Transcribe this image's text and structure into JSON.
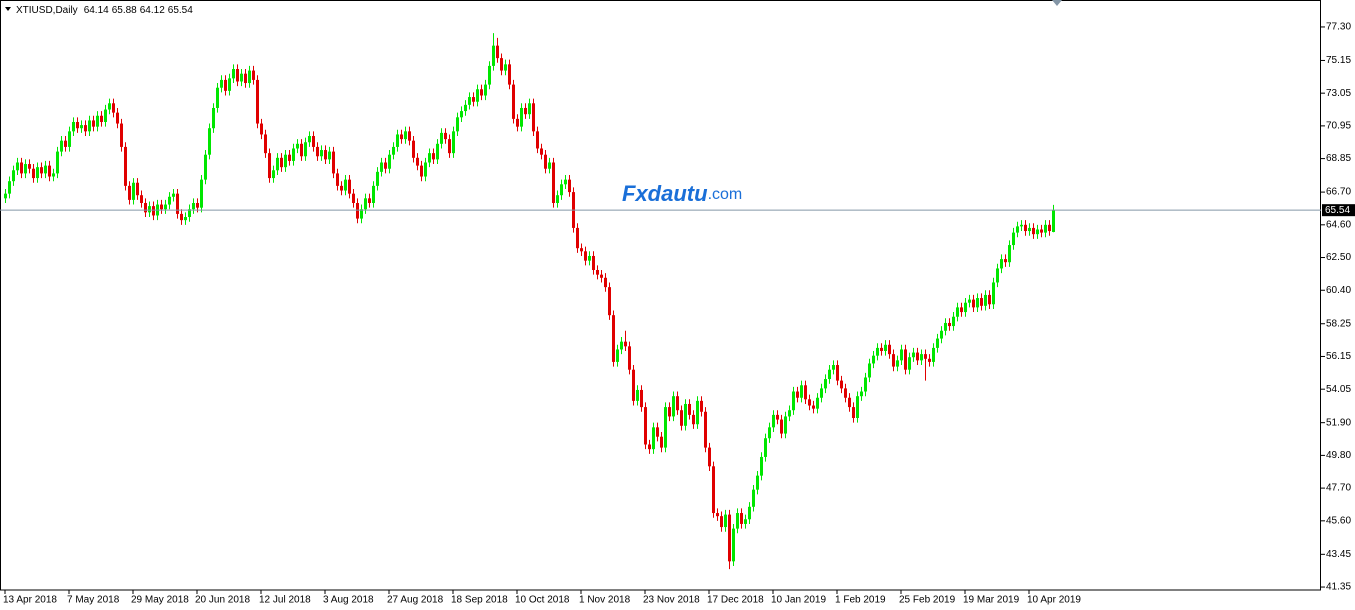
{
  "chart_data": {
    "type": "candlestick",
    "title": "XTIUSD,Daily",
    "watermark": "Fxdautu",
    "watermark_domain": ".com",
    "up_color": "#00e600",
    "down_color": "#e00000",
    "price_line_color": "#8496a6",
    "grid": false,
    "ylim": [
      41.16,
      79.03
    ],
    "yticks": [
      41.35,
      43.45,
      {
        "value": 45.6,
        "label": "45.60"
      },
      {
        "value": 47.7,
        "label": "47.70"
      },
      {
        "value": 49.8,
        "label": "49.80"
      },
      {
        "value": 51.9,
        "label": "51.90"
      },
      54.05,
      56.15,
      58.25,
      {
        "value": 60.4,
        "label": "60.40"
      },
      {
        "value": 62.5,
        "label": "62.50"
      },
      {
        "value": 64.6,
        "label": "64.60"
      },
      {
        "value": 66.7,
        "label": "66.70"
      },
      68.85,
      70.95,
      73.05,
      75.15,
      {
        "value": 77.3,
        "label": "77.30"
      }
    ],
    "categories": [
      "13 Apr 2018",
      null,
      null,
      null,
      null,
      null,
      null,
      null,
      null,
      null,
      null,
      null,
      null,
      null,
      null,
      null,
      "7 May 2018",
      null,
      null,
      null,
      null,
      null,
      null,
      null,
      null,
      null,
      null,
      null,
      null,
      null,
      null,
      null,
      "29 May 2018",
      null,
      null,
      null,
      null,
      null,
      null,
      null,
      null,
      null,
      null,
      null,
      null,
      null,
      null,
      null,
      "20 Jun 2018",
      null,
      null,
      null,
      null,
      null,
      null,
      null,
      null,
      null,
      null,
      null,
      null,
      null,
      null,
      null,
      "12 Jul 2018",
      null,
      null,
      null,
      null,
      null,
      null,
      null,
      null,
      null,
      null,
      null,
      null,
      null,
      null,
      null,
      "3 Aug 2018",
      null,
      null,
      null,
      null,
      null,
      null,
      null,
      null,
      null,
      null,
      null,
      null,
      null,
      null,
      null,
      "27 Aug 2018",
      null,
      null,
      null,
      null,
      null,
      null,
      null,
      null,
      null,
      null,
      null,
      null,
      null,
      null,
      null,
      "18 Sep 2018",
      null,
      null,
      null,
      null,
      null,
      null,
      null,
      null,
      null,
      null,
      null,
      null,
      null,
      null,
      null,
      "10 Oct 2018",
      null,
      null,
      null,
      null,
      null,
      null,
      null,
      null,
      null,
      null,
      null,
      null,
      null,
      null,
      null,
      "1 Nov 2018",
      null,
      null,
      null,
      null,
      null,
      null,
      null,
      null,
      null,
      null,
      null,
      null,
      null,
      null,
      null,
      "23 Nov 2018",
      null,
      null,
      null,
      null,
      null,
      null,
      null,
      null,
      null,
      null,
      null,
      null,
      null,
      null,
      null,
      "17 Dec 2018",
      null,
      null,
      null,
      null,
      null,
      null,
      null,
      null,
      null,
      null,
      null,
      null,
      null,
      null,
      null,
      "10 Jan 2019",
      null,
      null,
      null,
      null,
      null,
      null,
      null,
      null,
      null,
      null,
      null,
      null,
      null,
      null,
      null,
      "1 Feb 2019",
      null,
      null,
      null,
      null,
      null,
      null,
      null,
      null,
      null,
      null,
      null,
      null,
      null,
      null,
      null,
      "25 Feb 2019",
      null,
      null,
      null,
      null,
      null,
      null,
      null,
      null,
      null,
      null,
      null,
      null,
      null,
      null,
      null,
      "19 Mar 2019",
      null,
      null,
      null,
      null,
      null,
      null,
      null,
      null,
      null,
      null,
      null,
      null,
      null,
      null,
      null,
      "10 Apr 2019",
      null,
      null,
      null,
      null,
      null,
      null
    ],
    "open": [
      66.3,
      66.6,
      67.4,
      68.1,
      68.6,
      67.9,
      68.5,
      68.2,
      67.6,
      68.3,
      67.9,
      68.4,
      67.7,
      67.9,
      69.3,
      70.0,
      69.6,
      70.6,
      71.2,
      70.8,
      71.0,
      70.6,
      71.3,
      70.9,
      71.6,
      71.2,
      72.0,
      72.4,
      71.8,
      71.1,
      69.6,
      67.1,
      66.2,
      67.3,
      66.5,
      66.0,
      65.4,
      65.8,
      65.2,
      65.9,
      65.6,
      65.9,
      66.4,
      66.6,
      65.3,
      64.9,
      65.1,
      65.6,
      66.0,
      65.7,
      67.5,
      69.1,
      70.8,
      72.1,
      73.4,
      73.9,
      73.2,
      74.0,
      74.6,
      73.8,
      74.3,
      73.7,
      74.5,
      73.9,
      71.1,
      70.4,
      69.2,
      67.6,
      68.1,
      68.9,
      68.3,
      69.1,
      68.7,
      69.5,
      69.8,
      69.0,
      69.9,
      70.3,
      69.6,
      69.0,
      69.4,
      68.8,
      69.3,
      67.9,
      67.1,
      66.8,
      67.5,
      66.6,
      66.0,
      65.0,
      65.6,
      66.3,
      66.0,
      67.1,
      68.0,
      68.6,
      68.2,
      69.1,
      69.6,
      70.4,
      70.1,
      70.6,
      70.0,
      68.9,
      68.4,
      67.7,
      68.6,
      69.2,
      68.8,
      69.8,
      70.5,
      70.1,
      69.2,
      70.6,
      71.5,
      71.9,
      72.3,
      72.8,
      72.5,
      73.3,
      72.9,
      73.6,
      74.8,
      76.1,
      75.3,
      74.5,
      74.9,
      73.6,
      71.4,
      70.9,
      72.1,
      71.7,
      72.4,
      70.6,
      69.5,
      69.1,
      68.2,
      68.6,
      66.0,
      66.5,
      67.2,
      67.5,
      66.7,
      64.4,
      63.1,
      62.9,
      62.3,
      62.6,
      61.7,
      61.4,
      61.2,
      60.6,
      58.8,
      55.8,
      56.6,
      57.1,
      56.8,
      55.3,
      53.3,
      54.0,
      52.9,
      50.5,
      50.2,
      51.6,
      51.0,
      50.3,
      52.9,
      52.3,
      53.6,
      52.7,
      51.7,
      53.1,
      52.4,
      51.8,
      53.3,
      52.6,
      50.3,
      49.1,
      46.1,
      45.9,
      45.2,
      46.0,
      43.0,
      45.1,
      46.1,
      45.4,
      45.7,
      46.5,
      47.6,
      48.5,
      49.7,
      50.9,
      51.6,
      52.4,
      52.1,
      51.2,
      52.3,
      52.7,
      53.9,
      53.5,
      54.3,
      53.4,
      53.0,
      52.8,
      53.5,
      54.1,
      54.7,
      55.3,
      55.6,
      54.6,
      54.1,
      53.5,
      52.9,
      52.2,
      53.6,
      53.9,
      54.8,
      55.7,
      56.2,
      56.7,
      56.5,
      56.9,
      56.3,
      55.5,
      55.9,
      56.6,
      55.3,
      56.1,
      56.4,
      55.9,
      56.3,
      56.0,
      55.8,
      56.7,
      57.3,
      57.8,
      58.3,
      58.1,
      58.7,
      59.3,
      59.0,
      59.6,
      59.8,
      59.3,
      59.9,
      59.4,
      60.1,
      59.5,
      60.9,
      61.8,
      62.4,
      62.2,
      63.3,
      64.1,
      64.5,
      64.6,
      64.2,
      64.4,
      64.0,
      64.3,
      64.1,
      64.6,
      64.14
    ],
    "high": [
      66.9,
      67.7,
      68.4,
      68.9,
      68.9,
      68.8,
      68.8,
      68.5,
      68.6,
      68.6,
      68.7,
      68.7,
      68.2,
      69.6,
      70.3,
      70.3,
      70.9,
      71.5,
      71.5,
      71.3,
      71.3,
      71.6,
      71.6,
      71.9,
      71.9,
      72.3,
      72.7,
      72.7,
      72.1,
      71.4,
      69.9,
      67.4,
      67.6,
      67.6,
      66.8,
      66.3,
      66.1,
      66.1,
      66.2,
      66.2,
      66.2,
      66.7,
      66.9,
      66.9,
      65.6,
      65.4,
      65.9,
      66.3,
      66.3,
      67.8,
      69.4,
      71.1,
      72.4,
      73.7,
      74.2,
      74.2,
      74.3,
      74.9,
      74.9,
      74.6,
      74.6,
      74.8,
      74.8,
      74.2,
      71.4,
      70.7,
      69.5,
      68.4,
      69.2,
      69.2,
      69.4,
      69.4,
      69.8,
      70.1,
      70.1,
      70.2,
      70.6,
      70.6,
      69.9,
      69.7,
      69.7,
      69.6,
      69.6,
      68.2,
      67.4,
      67.8,
      67.8,
      66.9,
      66.3,
      65.9,
      66.6,
      66.6,
      67.4,
      68.3,
      68.9,
      68.9,
      69.4,
      69.9,
      70.7,
      70.7,
      70.9,
      70.9,
      70.3,
      69.2,
      68.7,
      68.9,
      69.5,
      69.5,
      70.1,
      70.8,
      70.8,
      70.4,
      70.9,
      71.8,
      72.2,
      72.6,
      73.1,
      73.1,
      73.6,
      73.6,
      73.9,
      75.1,
      76.9,
      76.6,
      75.6,
      75.2,
      75.2,
      73.9,
      71.7,
      72.4,
      72.4,
      72.7,
      72.7,
      70.9,
      69.8,
      69.4,
      68.9,
      68.9,
      66.8,
      67.5,
      67.8,
      67.8,
      67.0,
      64.7,
      63.4,
      63.2,
      62.9,
      62.9,
      62.0,
      61.7,
      61.5,
      60.9,
      59.1,
      56.9,
      57.4,
      57.8,
      57.1,
      55.6,
      54.3,
      54.3,
      53.2,
      50.8,
      51.9,
      51.9,
      51.3,
      53.2,
      53.2,
      53.9,
      53.9,
      53.0,
      53.4,
      53.4,
      52.7,
      53.6,
      53.6,
      52.9,
      50.6,
      49.4,
      46.4,
      46.2,
      46.3,
      46.3,
      45.4,
      46.4,
      46.4,
      46.0,
      46.8,
      47.9,
      48.8,
      50.0,
      51.2,
      51.9,
      52.7,
      52.7,
      52.4,
      52.6,
      53.0,
      54.2,
      54.2,
      54.6,
      54.6,
      53.7,
      53.3,
      53.8,
      54.4,
      55.0,
      55.6,
      55.9,
      55.9,
      54.9,
      54.4,
      53.8,
      53.2,
      53.9,
      54.2,
      55.1,
      56.0,
      56.5,
      57.0,
      57.0,
      57.2,
      57.2,
      56.6,
      56.2,
      56.9,
      56.9,
      56.4,
      56.7,
      56.7,
      56.6,
      56.6,
      56.3,
      57.0,
      57.6,
      58.1,
      58.6,
      58.6,
      59.0,
      59.6,
      59.6,
      59.9,
      60.1,
      60.1,
      60.2,
      60.2,
      60.4,
      60.4,
      61.2,
      62.1,
      62.7,
      62.7,
      63.6,
      64.4,
      64.8,
      64.9,
      64.9,
      64.7,
      64.7,
      64.6,
      64.6,
      64.9,
      64.9,
      65.88
    ],
    "low": [
      66.0,
      66.3,
      67.1,
      67.8,
      67.6,
      67.6,
      67.9,
      67.3,
      67.3,
      67.6,
      67.6,
      67.4,
      67.4,
      67.6,
      69.0,
      69.3,
      69.3,
      70.3,
      70.5,
      70.5,
      70.3,
      70.3,
      70.6,
      70.6,
      70.9,
      70.9,
      71.7,
      71.5,
      70.8,
      69.3,
      66.8,
      65.9,
      65.9,
      66.2,
      65.7,
      65.1,
      65.1,
      64.9,
      64.9,
      65.3,
      65.3,
      65.6,
      66.1,
      65.0,
      64.6,
      64.6,
      64.8,
      65.3,
      65.4,
      65.4,
      67.2,
      68.8,
      70.5,
      71.8,
      73.1,
      72.9,
      72.9,
      73.7,
      73.5,
      73.5,
      73.4,
      73.4,
      73.6,
      70.8,
      70.1,
      68.9,
      67.3,
      67.3,
      67.8,
      68.0,
      68.0,
      68.4,
      68.4,
      69.2,
      68.7,
      68.7,
      69.6,
      69.3,
      68.7,
      68.7,
      68.5,
      68.5,
      67.6,
      66.8,
      66.5,
      66.5,
      66.3,
      65.7,
      64.7,
      64.7,
      65.3,
      65.7,
      65.7,
      66.8,
      67.7,
      67.9,
      67.9,
      68.8,
      69.3,
      69.8,
      69.8,
      69.7,
      68.6,
      68.1,
      67.4,
      67.4,
      68.3,
      68.5,
      68.5,
      69.5,
      69.8,
      68.9,
      68.9,
      70.3,
      71.2,
      71.6,
      72.0,
      72.2,
      72.2,
      72.6,
      72.6,
      73.3,
      74.5,
      75.0,
      74.2,
      74.2,
      73.3,
      71.1,
      70.6,
      70.6,
      71.4,
      71.4,
      70.3,
      69.2,
      68.8,
      67.9,
      67.9,
      65.7,
      65.7,
      66.2,
      66.9,
      66.4,
      64.1,
      62.8,
      62.6,
      62.0,
      62.0,
      61.4,
      61.1,
      60.9,
      60.3,
      58.5,
      55.5,
      55.5,
      56.3,
      56.5,
      55.0,
      53.0,
      53.0,
      52.6,
      50.2,
      49.9,
      49.9,
      50.7,
      50.0,
      50.0,
      52.0,
      52.0,
      52.4,
      51.4,
      51.4,
      52.1,
      51.5,
      51.5,
      52.3,
      50.0,
      48.8,
      45.8,
      45.6,
      44.9,
      44.9,
      42.5,
      42.7,
      44.8,
      45.1,
      45.1,
      45.4,
      46.2,
      47.3,
      48.2,
      49.4,
      50.6,
      51.3,
      51.8,
      50.9,
      50.9,
      52.0,
      52.4,
      53.2,
      53.2,
      53.1,
      52.7,
      52.5,
      52.5,
      53.2,
      53.8,
      54.4,
      55.0,
      54.3,
      53.8,
      53.2,
      52.6,
      51.9,
      51.9,
      53.3,
      53.6,
      54.5,
      55.4,
      55.9,
      56.2,
      56.2,
      56.0,
      55.2,
      55.2,
      55.6,
      55.0,
      55.0,
      55.8,
      55.6,
      55.6,
      54.6,
      55.5,
      55.5,
      56.4,
      57.0,
      57.5,
      57.8,
      57.8,
      58.4,
      58.7,
      58.7,
      59.3,
      59.0,
      59.0,
      59.1,
      59.1,
      59.2,
      59.2,
      60.6,
      61.5,
      61.9,
      61.9,
      63.0,
      63.8,
      64.2,
      63.9,
      63.9,
      63.7,
      63.7,
      63.8,
      63.8,
      63.9,
      64.12
    ],
    "close": [
      66.6,
      67.4,
      68.1,
      68.6,
      67.9,
      68.5,
      68.2,
      67.6,
      68.3,
      67.9,
      68.4,
      67.7,
      67.9,
      69.3,
      70.0,
      69.6,
      70.6,
      71.2,
      70.8,
      71.0,
      70.6,
      71.3,
      70.9,
      71.6,
      71.2,
      72.0,
      72.4,
      71.8,
      71.1,
      69.6,
      67.1,
      66.2,
      67.3,
      66.5,
      66.0,
      65.4,
      65.8,
      65.2,
      65.9,
      65.6,
      65.9,
      66.4,
      66.6,
      65.3,
      64.9,
      65.1,
      65.6,
      66.0,
      65.7,
      67.5,
      69.1,
      70.8,
      72.1,
      73.4,
      73.9,
      73.2,
      74.0,
      74.6,
      73.8,
      74.3,
      73.7,
      74.5,
      73.9,
      71.1,
      70.4,
      69.2,
      67.6,
      68.1,
      68.9,
      68.3,
      69.1,
      68.7,
      69.5,
      69.8,
      69.0,
      69.9,
      70.3,
      69.6,
      69.0,
      69.4,
      68.8,
      69.3,
      67.9,
      67.1,
      66.8,
      67.5,
      66.6,
      66.0,
      65.0,
      65.6,
      66.3,
      66.0,
      67.1,
      68.0,
      68.6,
      68.2,
      69.1,
      69.6,
      70.4,
      70.1,
      70.6,
      70.0,
      68.9,
      68.4,
      67.7,
      68.6,
      69.2,
      68.8,
      69.8,
      70.5,
      70.1,
      69.2,
      70.6,
      71.5,
      71.9,
      72.3,
      72.8,
      72.5,
      73.3,
      72.9,
      73.6,
      74.8,
      76.1,
      75.3,
      74.5,
      74.9,
      73.6,
      71.4,
      70.9,
      72.1,
      71.7,
      72.4,
      70.6,
      69.5,
      69.1,
      68.2,
      68.6,
      66.0,
      66.5,
      67.2,
      67.5,
      66.7,
      64.4,
      63.1,
      62.9,
      62.3,
      62.6,
      61.7,
      61.4,
      61.2,
      60.6,
      58.8,
      55.8,
      56.6,
      57.1,
      56.8,
      55.3,
      53.3,
      54.0,
      52.9,
      50.5,
      50.2,
      51.6,
      51.0,
      50.3,
      52.9,
      52.3,
      53.6,
      52.7,
      51.7,
      53.1,
      52.4,
      51.8,
      53.3,
      52.6,
      50.3,
      49.1,
      46.1,
      45.9,
      45.2,
      46.0,
      43.0,
      45.1,
      46.1,
      45.4,
      45.7,
      46.5,
      47.6,
      48.5,
      49.7,
      50.9,
      51.6,
      52.4,
      52.1,
      51.2,
      52.3,
      52.7,
      53.9,
      53.5,
      54.3,
      53.4,
      53.0,
      52.8,
      53.5,
      54.1,
      54.7,
      55.3,
      55.6,
      54.6,
      54.1,
      53.5,
      52.9,
      52.2,
      53.6,
      53.9,
      54.8,
      55.7,
      56.2,
      56.7,
      56.5,
      56.9,
      56.3,
      55.5,
      55.9,
      56.6,
      55.3,
      56.1,
      56.4,
      55.9,
      56.3,
      56.0,
      55.8,
      56.7,
      57.3,
      57.8,
      58.3,
      58.1,
      58.7,
      59.3,
      59.0,
      59.6,
      59.8,
      59.3,
      59.9,
      59.4,
      60.1,
      59.5,
      60.9,
      61.8,
      62.4,
      62.2,
      63.3,
      64.1,
      64.5,
      64.6,
      64.2,
      64.4,
      64.0,
      64.3,
      64.1,
      64.6,
      64.2,
      65.54
    ]
  }
}
